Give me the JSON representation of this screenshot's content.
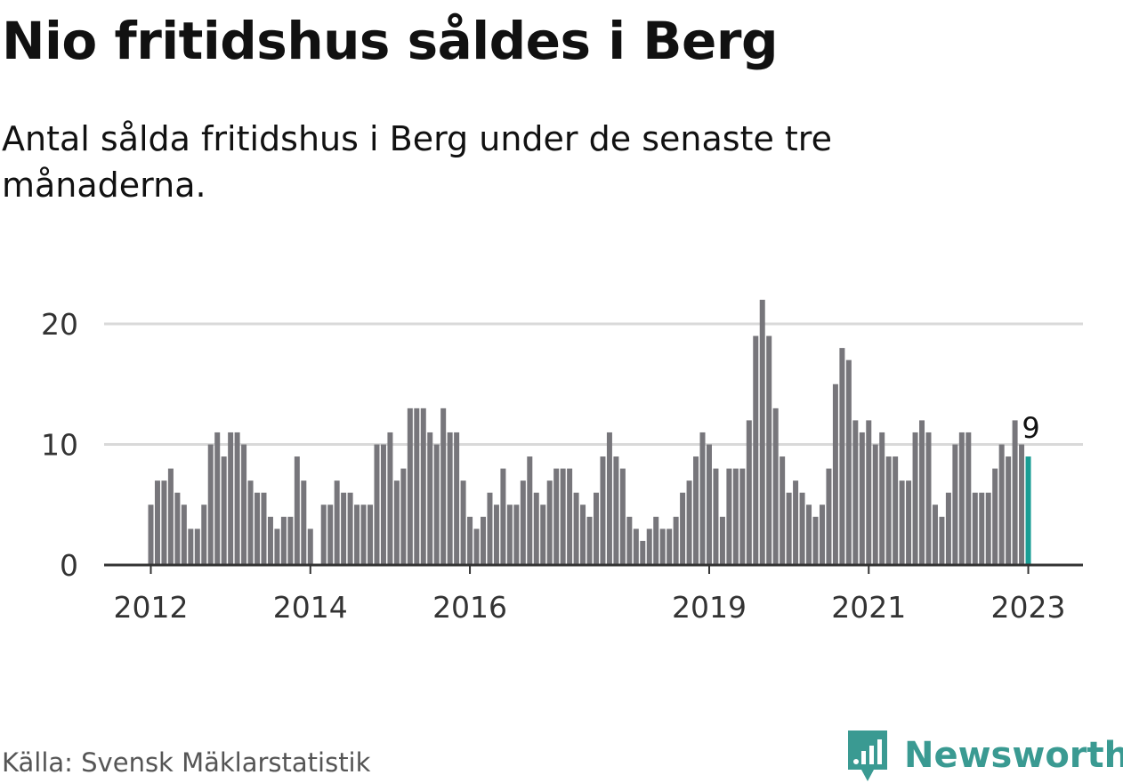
{
  "title": "Nio fritidshus såldes i Berg",
  "subtitle": "Antal sålda fritidshus i Berg under de senaste tre månaderna.",
  "source": "Källa: Svensk Mäklarstatistik",
  "brand": {
    "name": "Newsworthy",
    "icon": "bar-chart-speech-bubble-icon"
  },
  "colors": {
    "bar": "#77767b",
    "highlight": "#1a9e95",
    "grid": "#d9d9d9",
    "axis": "#333333",
    "brand": "#3a9a92"
  },
  "chart_data": {
    "type": "bar",
    "title": "Nio fritidshus såldes i Berg",
    "xlabel": "",
    "ylabel": "",
    "ylim": [
      0,
      22
    ],
    "yticks": [
      0,
      10,
      20
    ],
    "xtick_labels": [
      {
        "label": "2012",
        "index": 0
      },
      {
        "label": "2014",
        "index": 24
      },
      {
        "label": "2016",
        "index": 48
      },
      {
        "label": "2019",
        "index": 84
      },
      {
        "label": "2021",
        "index": 108
      },
      {
        "label": "2023",
        "index": 132
      }
    ],
    "start_month": "2012-01",
    "end_month": "2023-01",
    "values": [
      5,
      7,
      7,
      8,
      6,
      5,
      3,
      3,
      5,
      10,
      11,
      9,
      11,
      11,
      10,
      7,
      6,
      6,
      4,
      3,
      4,
      4,
      9,
      7,
      3,
      0,
      5,
      5,
      7,
      6,
      6,
      5,
      5,
      5,
      10,
      10,
      11,
      7,
      8,
      13,
      13,
      13,
      11,
      10,
      13,
      11,
      11,
      7,
      4,
      3,
      4,
      6,
      5,
      8,
      5,
      5,
      7,
      9,
      6,
      5,
      7,
      8,
      8,
      8,
      6,
      5,
      4,
      6,
      9,
      11,
      9,
      8,
      4,
      3,
      2,
      3,
      4,
      3,
      3,
      4,
      6,
      7,
      9,
      11,
      10,
      8,
      4,
      8,
      8,
      8,
      12,
      19,
      22,
      19,
      13,
      9,
      6,
      7,
      6,
      5,
      4,
      5,
      8,
      15,
      18,
      17,
      12,
      11,
      12,
      10,
      11,
      9,
      9,
      7,
      7,
      11,
      12,
      11,
      5,
      4,
      6,
      10,
      11,
      11,
      6,
      6,
      6,
      8,
      10,
      9,
      12,
      10,
      9
    ],
    "highlight_index": 132,
    "annotation": {
      "index": 132,
      "text": "9"
    },
    "grid": true
  }
}
